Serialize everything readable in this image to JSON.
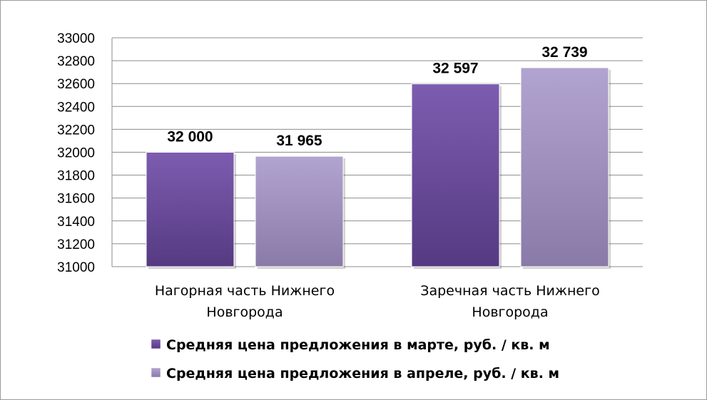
{
  "chart_data": {
    "type": "bar",
    "categories": [
      [
        "Нагорная часть Нижнего",
        "Новгорода"
      ],
      [
        "Заречная часть Нижнего",
        "Новгорода"
      ]
    ],
    "series": [
      {
        "name": "Средняя цена предложения в марте, руб. / кв. м",
        "values": [
          32000,
          32597
        ],
        "value_labels": [
          "32 000",
          "32 597"
        ],
        "color": "#6a4a9c"
      },
      {
        "name": "Средняя цена предложения в апреле, руб. / кв. м",
        "values": [
          31965,
          32739
        ],
        "value_labels": [
          "31 965",
          "32 739"
        ],
        "color": "#9f8fc0"
      }
    ],
    "ylim": [
      31000,
      33000
    ],
    "yticks": [
      31000,
      31200,
      31400,
      31600,
      31800,
      32000,
      32200,
      32400,
      32600,
      32800,
      33000
    ],
    "grid": true,
    "legend": "bottom",
    "title": "",
    "xlabel": "",
    "ylabel": ""
  }
}
